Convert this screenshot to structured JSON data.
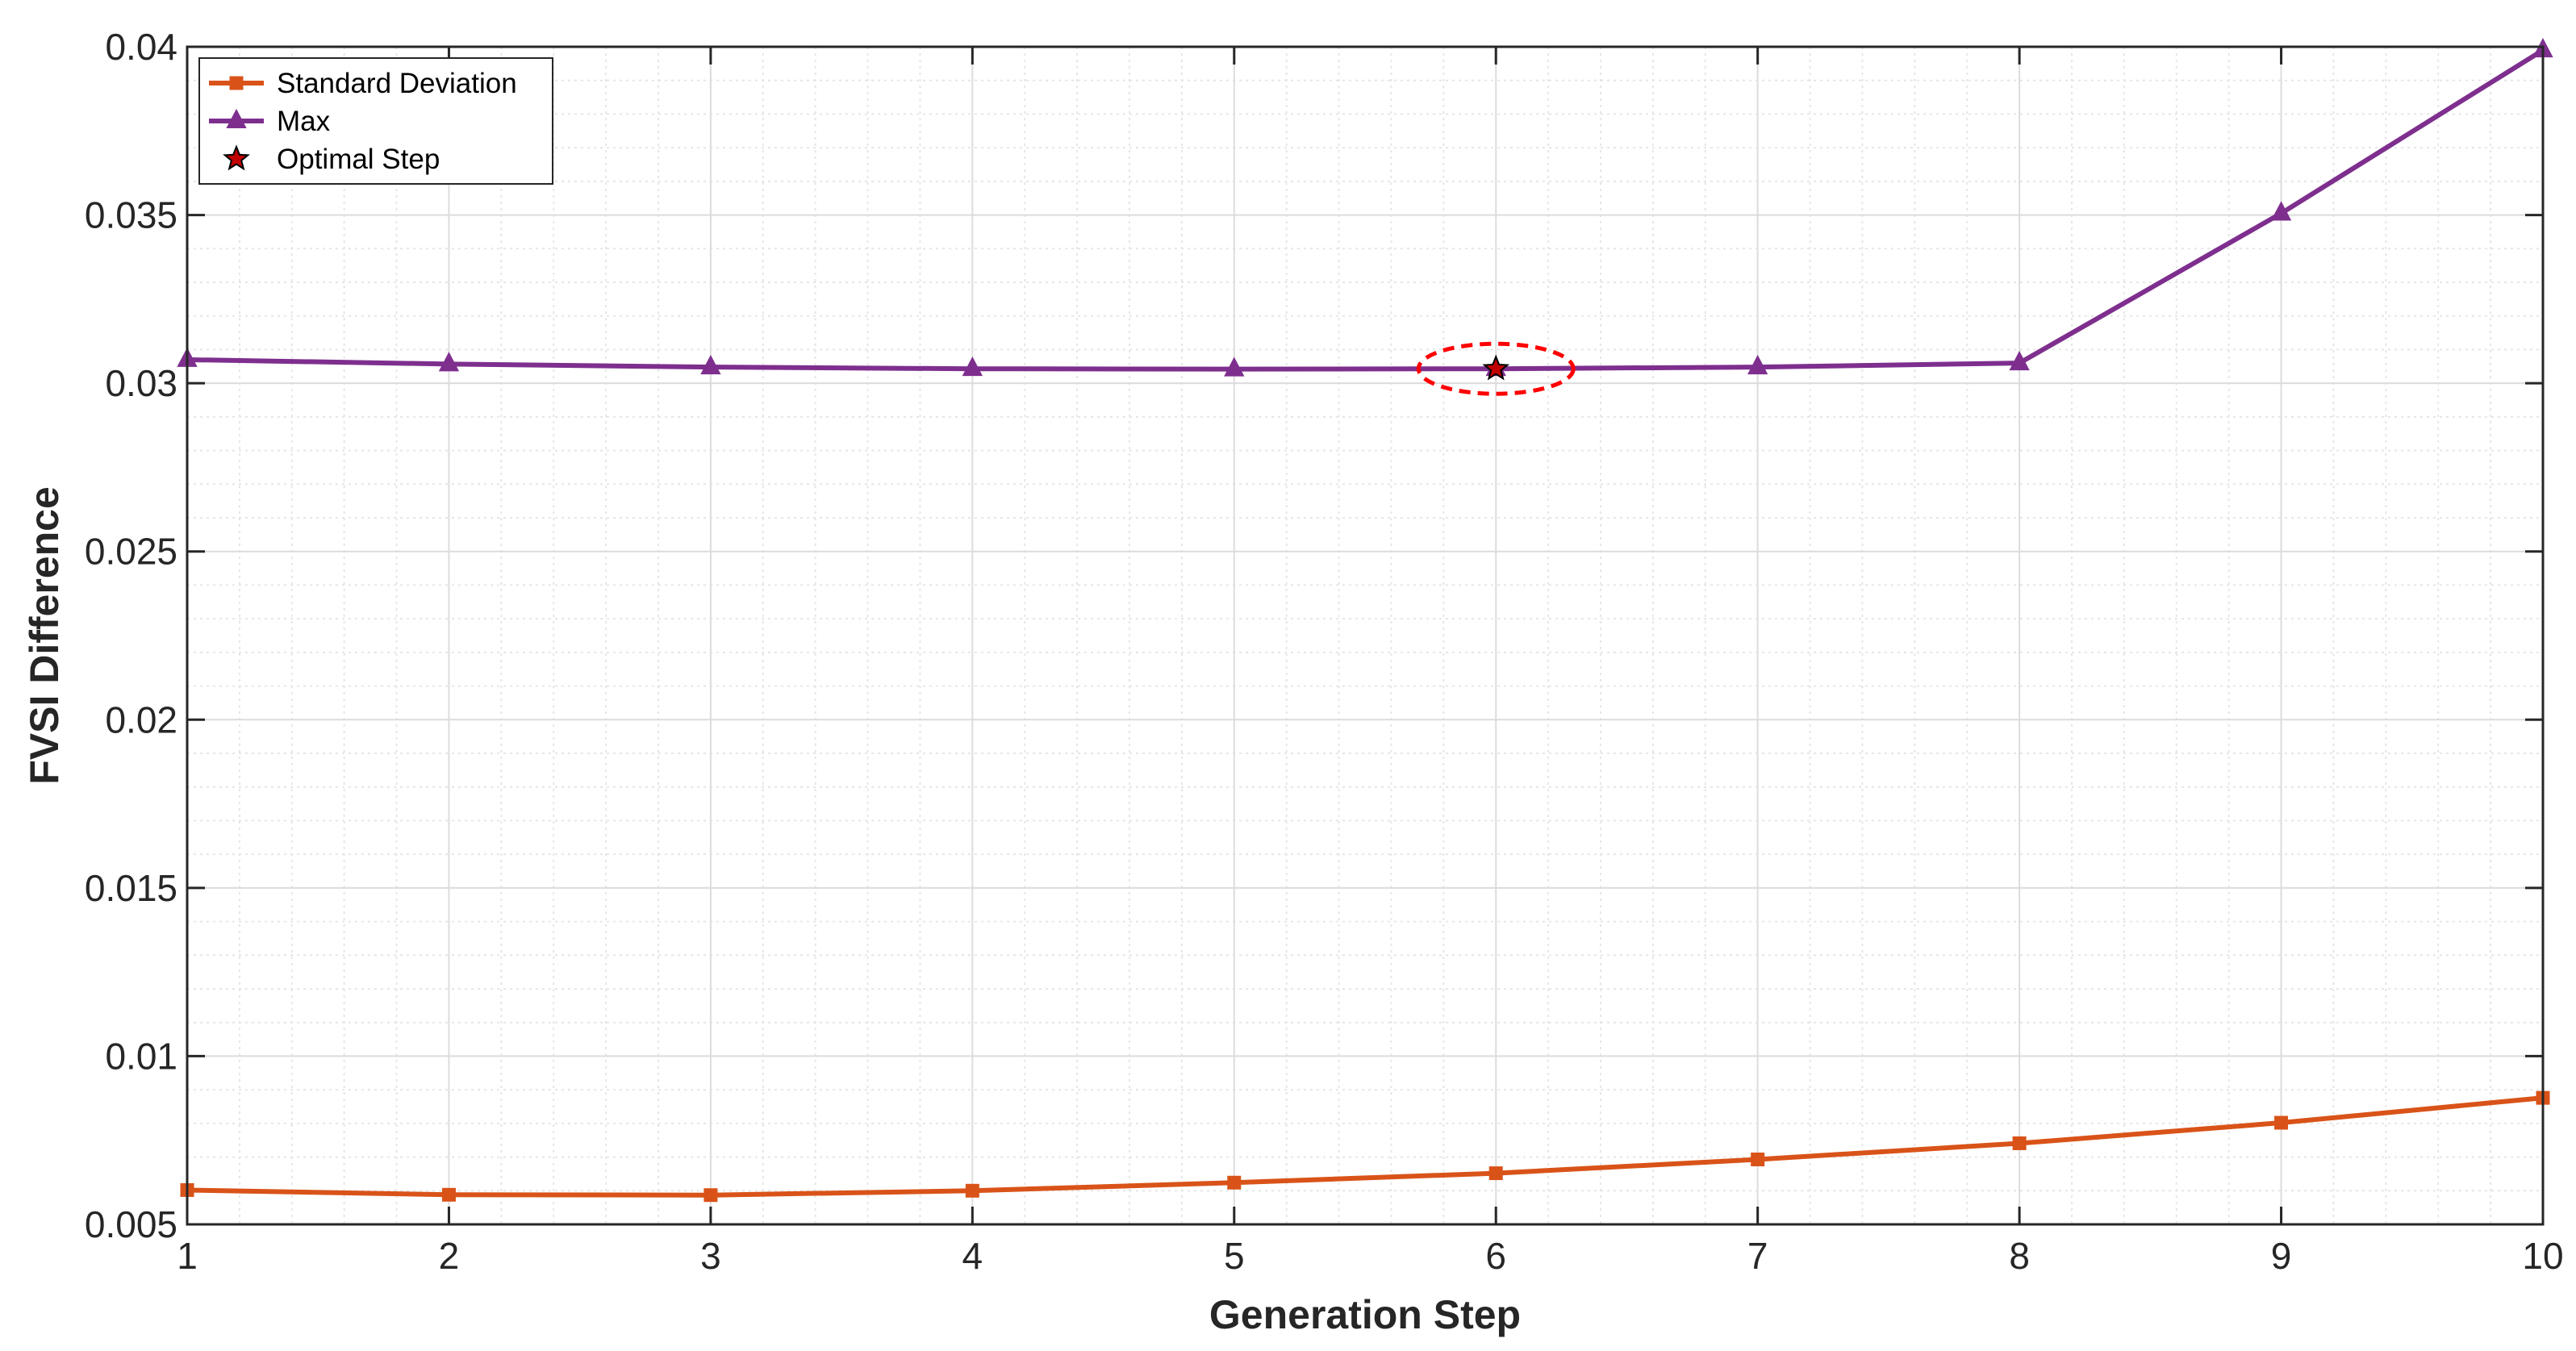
{
  "chart_data": {
    "type": "line",
    "title": "",
    "xlabel": "Generation Step",
    "ylabel": "FVSI Difference",
    "x": [
      1,
      2,
      3,
      4,
      5,
      6,
      7,
      8,
      9,
      10
    ],
    "xlim": [
      1,
      10
    ],
    "ylim": [
      0.005,
      0.04
    ],
    "xticks": [
      1,
      2,
      3,
      4,
      5,
      6,
      7,
      8,
      9,
      10
    ],
    "xtick_labels": [
      "1",
      "2",
      "3",
      "4",
      "5",
      "6",
      "7",
      "8",
      "9",
      "10"
    ],
    "yticks": [
      0.005,
      0.01,
      0.015,
      0.02,
      0.025,
      0.03,
      0.035,
      0.04
    ],
    "ytick_labels": [
      "0.005",
      "0.01",
      "0.015",
      "0.02",
      "0.025",
      "0.03",
      "0.035",
      "0.04"
    ],
    "grid": true,
    "minor_grid": true,
    "legend_position": "top-left",
    "series": [
      {
        "name": "Standard Deviation",
        "color": "#D95319",
        "marker": "square",
        "values": [
          0.00602,
          0.00588,
          0.00587,
          0.006,
          0.00624,
          0.00652,
          0.00693,
          0.00741,
          0.00802,
          0.00876
        ]
      },
      {
        "name": "Max",
        "color": "#7E2F8E",
        "marker": "triangle",
        "values": [
          0.0307,
          0.03057,
          0.03048,
          0.03043,
          0.03042,
          0.03043,
          0.03048,
          0.0306,
          0.03505,
          0.0399
        ]
      }
    ],
    "annotations": [
      {
        "name": "Optimal Step",
        "type": "star-marker",
        "x": 6,
        "y": 0.03043,
        "color": "#C00000"
      },
      {
        "name": "optimal-step-highlight",
        "type": "dashed-ellipse",
        "x": 6,
        "y": 0.03043,
        "color": "#FF0000"
      }
    ]
  }
}
